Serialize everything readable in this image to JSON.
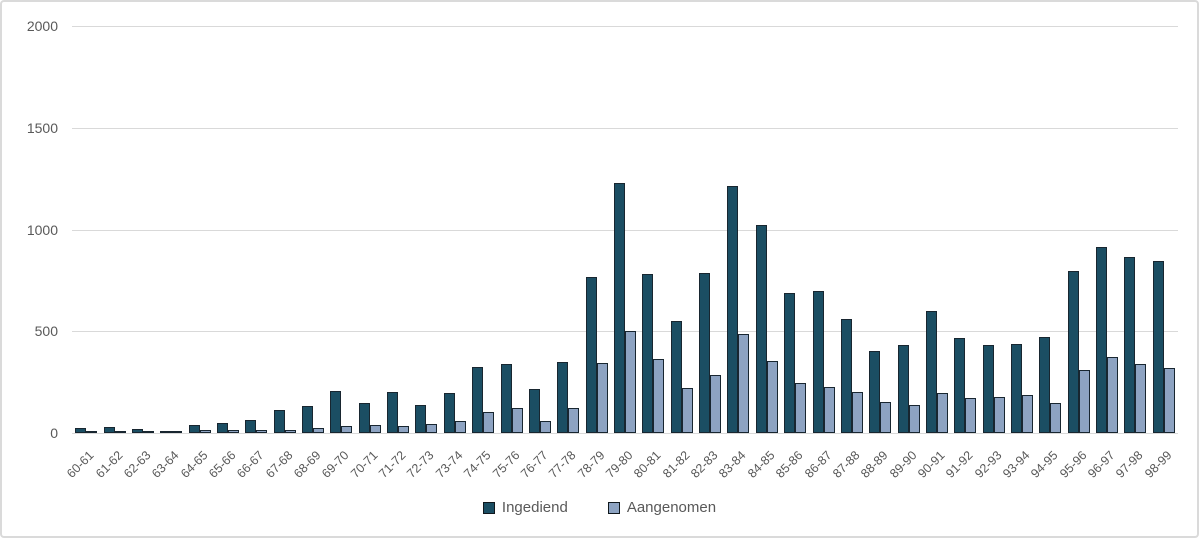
{
  "chart_data": {
    "type": "bar",
    "title": "",
    "xlabel": "",
    "ylabel": "",
    "categories": [
      "60-61",
      "61-62",
      "62-63",
      "63-64",
      "64-65",
      "65-66",
      "66-67",
      "67-68",
      "68-69",
      "69-70",
      "70-71",
      "71-72",
      "72-73",
      "73-74",
      "74-75",
      "75-76",
      "76-77",
      "77-78",
      "78-79",
      "79-80",
      "80-81",
      "81-82",
      "82-83",
      "83-84",
      "84-85",
      "85-86",
      "86-87",
      "87-88",
      "88-89",
      "89-90",
      "90-91",
      "91-92",
      "92-93",
      "93-94",
      "94-95",
      "95-96",
      "96-97",
      "97-98",
      "98-99"
    ],
    "series": [
      {
        "name": "Ingediend",
        "color": "#1b4e63",
        "values": [
          25,
          28,
          21,
          8,
          40,
          48,
          65,
          115,
          135,
          205,
          148,
          204,
          137,
          197,
          323,
          340,
          216,
          348,
          766,
          1229,
          782,
          548,
          785,
          1216,
          1020,
          687,
          697,
          561,
          405,
          433,
          601,
          467,
          434,
          436,
          472,
          798,
          913,
          867,
          847
        ]
      },
      {
        "name": "Aangenomen",
        "color": "#8da3c2",
        "values": [
          10,
          11,
          8,
          4,
          16,
          15,
          13,
          16,
          23,
          36,
          41,
          36,
          44,
          60,
          105,
          122,
          58,
          121,
          345,
          503,
          364,
          221,
          285,
          487,
          355,
          245,
          228,
          200,
          150,
          138,
          196,
          170,
          176,
          185,
          148,
          308,
          372,
          341,
          320
        ]
      }
    ],
    "ylim": [
      0,
      2000
    ],
    "y_ticks": [
      "0",
      "500",
      "1000",
      "1500",
      "2000"
    ],
    "grid": "horizontal",
    "legend_position": "bottom",
    "gridline_color": "#d9d9d9",
    "axis_label_color": "#595959",
    "bar_border_color": "#182630"
  }
}
